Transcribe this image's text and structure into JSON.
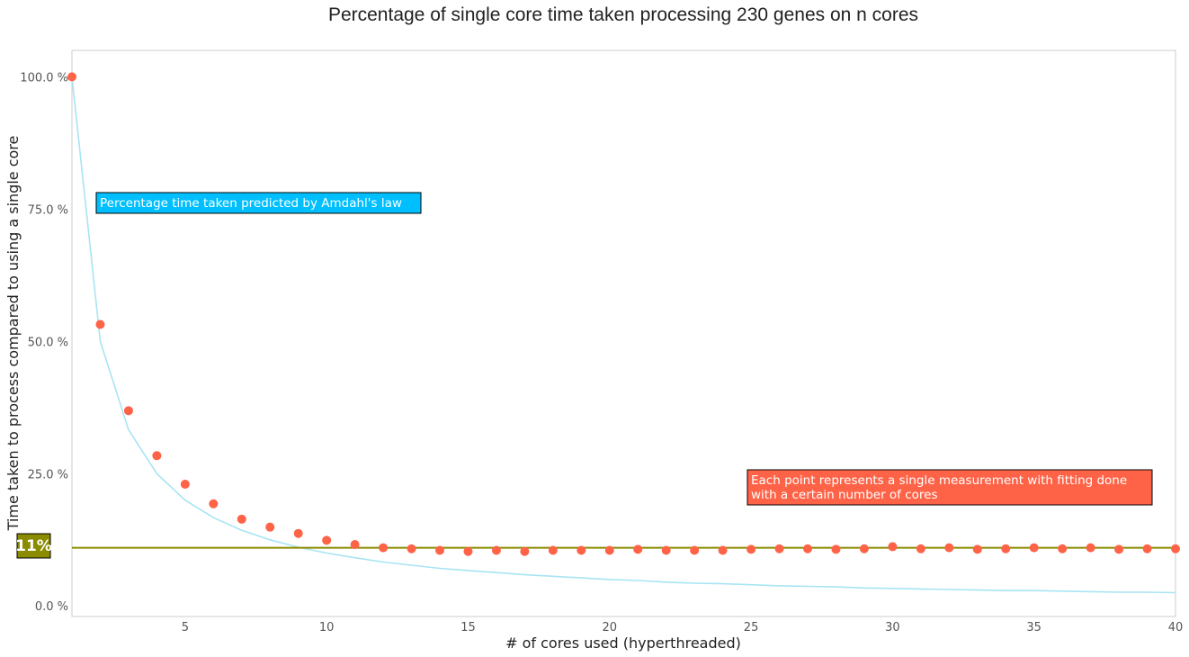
{
  "chart_data": {
    "type": "scatter",
    "title": "Percentage of single core time taken processing 230 genes on n cores",
    "xlabel": "# of cores used (hyperthreaded)",
    "ylabel": "Time taken to process compared to using a single core",
    "xlim": [
      1,
      40
    ],
    "ylim": [
      -2,
      105
    ],
    "x_ticks": [
      5,
      10,
      15,
      20,
      25,
      30,
      35,
      40
    ],
    "y_ticks": [
      0,
      25,
      50,
      75,
      100
    ],
    "y_tick_labels": [
      "0.0 %",
      "25.0 %",
      "50.0 %",
      "75.0 %",
      "100.0 %"
    ],
    "grid": false,
    "series": [
      {
        "kind": "points",
        "color": "#ff6347",
        "x": [
          1,
          2,
          3,
          4,
          5,
          6,
          7,
          8,
          9,
          10,
          11,
          12,
          13,
          14,
          15,
          16,
          17,
          18,
          19,
          20,
          21,
          22,
          23,
          24,
          25,
          26,
          27,
          28,
          29,
          30,
          31,
          32,
          33,
          34,
          35,
          36,
          37,
          38,
          39,
          40
        ],
        "y": [
          100,
          53.2,
          36.9,
          28.4,
          23.0,
          19.3,
          16.4,
          14.9,
          13.7,
          12.4,
          11.6,
          11.0,
          10.8,
          10.5,
          10.3,
          10.5,
          10.3,
          10.5,
          10.5,
          10.5,
          10.7,
          10.5,
          10.5,
          10.5,
          10.7,
          10.8,
          10.8,
          10.7,
          10.8,
          11.2,
          10.8,
          11.0,
          10.7,
          10.8,
          11.0,
          10.8,
          11.0,
          10.7,
          10.8,
          10.8
        ]
      },
      {
        "kind": "line",
        "color": "#a8e4f3",
        "formula": "100/n",
        "x": [
          1,
          2,
          3,
          4,
          5,
          6,
          7,
          8,
          9,
          10,
          11,
          12,
          13,
          14,
          15,
          16,
          17,
          18,
          19,
          20,
          21,
          22,
          23,
          24,
          25,
          26,
          27,
          28,
          29,
          30,
          31,
          32,
          33,
          34,
          35,
          36,
          37,
          38,
          39,
          40
        ],
        "y": [
          100,
          50,
          33.3,
          25,
          20,
          16.7,
          14.3,
          12.5,
          11.1,
          10,
          9.1,
          8.3,
          7.7,
          7.1,
          6.7,
          6.3,
          5.9,
          5.6,
          5.3,
          5,
          4.8,
          4.5,
          4.3,
          4.2,
          4,
          3.8,
          3.7,
          3.6,
          3.4,
          3.3,
          3.2,
          3.1,
          3,
          2.9,
          2.9,
          2.8,
          2.7,
          2.6,
          2.6,
          2.5
        ]
      }
    ],
    "hline": {
      "y": 11,
      "color": "#8b8b00",
      "label": "11%"
    },
    "annotations": [
      {
        "text": "Percentage time taken predicted by Amdahl's law",
        "color": "#00bfff",
        "x": 2,
        "y": 76.5
      },
      {
        "text_lines": [
          "Each point represents a single measurement with fitting done",
          "with a certain number of cores"
        ],
        "color": "#ff6347",
        "x": 25,
        "y": 23.5
      }
    ]
  }
}
